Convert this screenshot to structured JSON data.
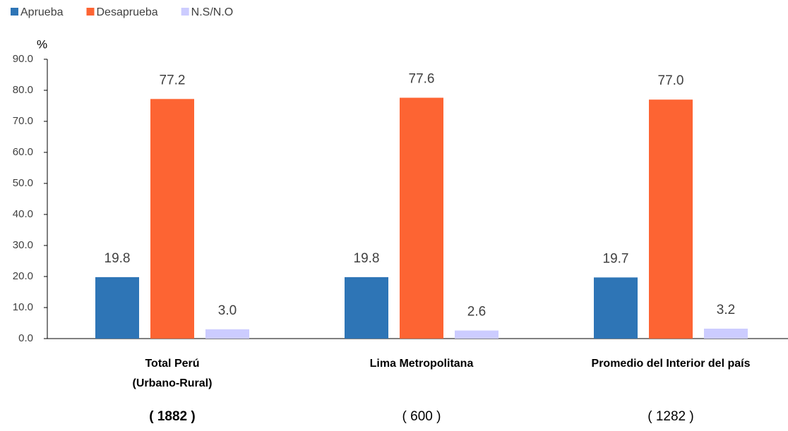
{
  "chart_data": {
    "type": "bar",
    "y_label": "%",
    "categories": [
      [
        "Total Perú",
        "(Urbano-Rural)"
      ],
      [
        "Lima Metropolitana"
      ],
      [
        "Promedio del Interior del país"
      ]
    ],
    "sample_sizes": [
      "( 1882 )",
      "( 600 )",
      "( 1282 )"
    ],
    "series": [
      {
        "name": "Aprueba",
        "color": "#2e75b6",
        "values": [
          19.8,
          19.8,
          19.7
        ],
        "value_labels": [
          "19.8",
          "19.8",
          "19.7"
        ]
      },
      {
        "name": "Desaprueba",
        "color": "#fd6433",
        "values": [
          77.2,
          77.6,
          77.0
        ],
        "value_labels": [
          "77.2",
          "77.6",
          "77.0"
        ]
      },
      {
        "name": "N.S/N.O",
        "color": "#ccccff",
        "values": [
          3.0,
          2.6,
          3.2
        ],
        "value_labels": [
          "3.0",
          "2.6",
          "3.2"
        ]
      }
    ],
    "ylim": [
      0,
      90
    ],
    "yticks": [
      {
        "value": 0,
        "label": "0.0"
      },
      {
        "value": 10,
        "label": "10.0"
      },
      {
        "value": 20,
        "label": "20.0"
      },
      {
        "value": 30,
        "label": "30.0"
      },
      {
        "value": 40,
        "label": "40.0"
      },
      {
        "value": 50,
        "label": "50.0"
      },
      {
        "value": 60,
        "label": "60.0"
      },
      {
        "value": 70,
        "label": "70.0"
      },
      {
        "value": 80,
        "label": "80.0"
      },
      {
        "value": 90,
        "label": "90.0"
      }
    ]
  }
}
